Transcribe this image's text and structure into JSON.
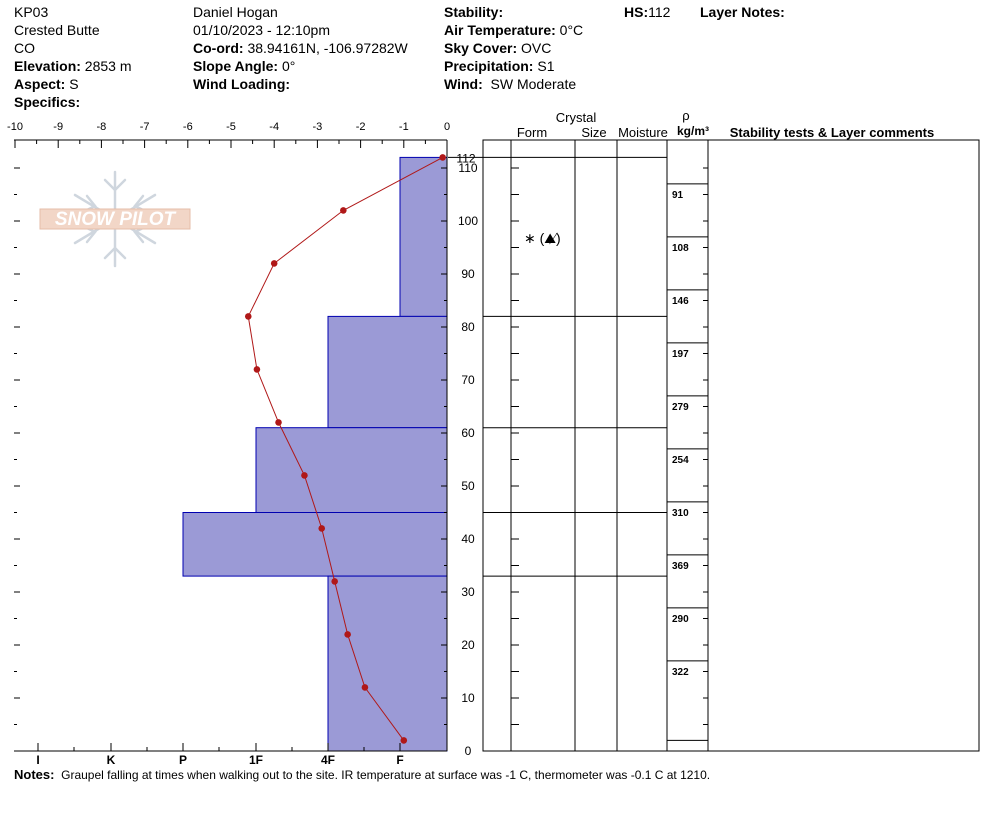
{
  "header": {
    "site_id": "KP03",
    "location": "Crested Butte",
    "state": "CO",
    "elevation_label": "Elevation:",
    "elevation_value": "2853 m",
    "aspect_label": "Aspect:",
    "aspect_value": "S",
    "specifics_label": "Specifics:",
    "observer": "Daniel Hogan",
    "datetime": "01/10/2023 - 12:10pm",
    "coord_label": "Co-ord:",
    "coord_value": "38.94161N, -106.97282W",
    "slope_label": "Slope Angle:",
    "slope_value": "0°",
    "wind_loading_label": "Wind Loading:",
    "stability_label": "Stability:",
    "air_temp_label": "Air Temperature:",
    "air_temp_value": "0°C",
    "sky_label": "Sky Cover:",
    "sky_value": "OVC",
    "precip_label": "Precipitation:",
    "precip_value": "S1",
    "wind_label": "Wind:",
    "wind_value": "SW Moderate",
    "hs_label": "HS:",
    "hs_value": "112",
    "layer_notes_label": "Layer Notes:"
  },
  "logo": {
    "text": "SNOW PILOT"
  },
  "notes": {
    "label": "Notes:",
    "text": "Graupel falling at times when walking out to the site. IR temperature at surface was -1 C, thermometer was -0.1 C at 1210."
  },
  "table_headers": {
    "crystal": "Crystal",
    "form": "Form",
    "size": "Size",
    "moisture": "Moisture",
    "rho": "ρ",
    "density_unit": "kg/m³",
    "stability_comments": "Stability tests & Layer comments"
  },
  "colors": {
    "hardness_fill": "#9b9ad6",
    "hardness_stroke": "#0000b0",
    "temp_line": "#b01818"
  },
  "chart_data": {
    "type": "line",
    "temp_axis": {
      "ticks": [
        -10,
        -9,
        -8,
        -7,
        -6,
        -5,
        -4,
        -3,
        -2,
        -1,
        0
      ],
      "range": [
        -10,
        0
      ]
    },
    "height_axis": {
      "ticks": [
        0,
        10,
        20,
        30,
        40,
        50,
        60,
        70,
        80,
        90,
        100,
        110
      ],
      "range": [
        0,
        112
      ],
      "hs_tick": 112
    },
    "hardness_axis": {
      "labels": [
        "I",
        "K",
        "P",
        "1F",
        "4F",
        "F"
      ]
    },
    "hardness_layers": [
      {
        "bottom": 82,
        "top": 112,
        "hardness": "F"
      },
      {
        "bottom": 61,
        "top": 82,
        "hardness": "4F"
      },
      {
        "bottom": 45,
        "top": 61,
        "hardness": "1F"
      },
      {
        "bottom": 33,
        "top": 45,
        "hardness": "P"
      },
      {
        "bottom": 0,
        "top": 33,
        "hardness": "4F"
      }
    ],
    "temperature_profile": [
      {
        "height": 112,
        "temp": -0.1
      },
      {
        "height": 102,
        "temp": -2.4
      },
      {
        "height": 92,
        "temp": -4.0
      },
      {
        "height": 82,
        "temp": -4.6
      },
      {
        "height": 72,
        "temp": -4.4
      },
      {
        "height": 62,
        "temp": -3.9
      },
      {
        "height": 52,
        "temp": -3.3
      },
      {
        "height": 42,
        "temp": -2.9
      },
      {
        "height": 32,
        "temp": -2.6
      },
      {
        "height": 22,
        "temp": -2.3
      },
      {
        "height": 12,
        "temp": -1.9
      },
      {
        "height": 2,
        "temp": -1.0
      }
    ],
    "layer_boundaries": [
      112,
      82,
      61,
      45,
      33,
      0
    ],
    "crystal_form_symbols": "∗ (⛰̸)",
    "densities": [
      {
        "height": 102,
        "value": 91
      },
      {
        "height": 92,
        "value": 108
      },
      {
        "height": 82,
        "value": 146
      },
      {
        "height": 72,
        "value": 197
      },
      {
        "height": 62,
        "value": 279
      },
      {
        "height": 52,
        "value": 254
      },
      {
        "height": 42,
        "value": 310
      },
      {
        "height": 32,
        "value": 369
      },
      {
        "height": 22,
        "value": 290
      },
      {
        "height": 12,
        "value": 322
      }
    ]
  }
}
